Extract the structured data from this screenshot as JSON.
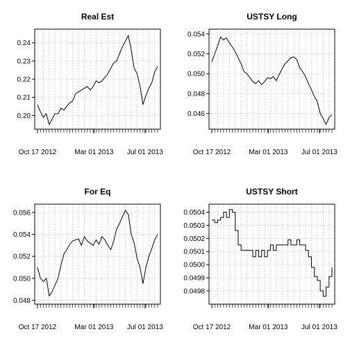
{
  "chart_data": [
    {
      "type": "line",
      "title": "Real Est",
      "x_range": [
        "2012-10-17",
        "2013-07-31"
      ],
      "ylim": [
        0.194,
        0.246
      ],
      "y_ticks": [
        0.2,
        0.21,
        0.22,
        0.23,
        0.24
      ],
      "y_tick_labels": [
        "0.20",
        "0.21",
        "0.22",
        "0.23",
        "0.24"
      ],
      "x_tick_dates": [
        "2012-10-17",
        "2013-03-01",
        "2013-07-01"
      ],
      "x_tick_labels": [
        "Oct 17 2012",
        "Mar 01 2013",
        "Jul 01 2013"
      ],
      "grid": true,
      "series": [
        {
          "x": [
            "2012-10-17",
            "2012-10-24",
            "2012-10-31",
            "2012-11-07",
            "2012-11-14",
            "2012-11-21",
            "2012-11-28",
            "2012-12-05",
            "2012-12-12",
            "2012-12-19",
            "2012-12-26",
            "2013-01-02",
            "2013-01-09",
            "2013-01-16",
            "2013-01-23",
            "2013-01-30",
            "2013-02-06",
            "2013-02-13",
            "2013-02-20",
            "2013-02-27",
            "2013-03-06",
            "2013-03-13",
            "2013-03-20",
            "2013-03-27",
            "2013-04-03",
            "2013-04-10",
            "2013-04-17",
            "2013-04-24",
            "2013-05-01",
            "2013-05-08",
            "2013-05-15",
            "2013-05-22",
            "2013-05-29",
            "2013-06-05",
            "2013-06-12",
            "2013-06-19",
            "2013-06-26",
            "2013-07-03",
            "2013-07-10",
            "2013-07-17",
            "2013-07-24",
            "2013-07-31"
          ],
          "values": [
            0.206,
            0.202,
            0.199,
            0.201,
            0.195,
            0.198,
            0.201,
            0.201,
            0.204,
            0.203,
            0.205,
            0.207,
            0.208,
            0.212,
            0.213,
            0.214,
            0.215,
            0.216,
            0.214,
            0.216,
            0.219,
            0.218,
            0.219,
            0.221,
            0.223,
            0.226,
            0.229,
            0.23,
            0.234,
            0.238,
            0.241,
            0.244,
            0.236,
            0.226,
            0.223,
            0.216,
            0.206,
            0.211,
            0.215,
            0.218,
            0.224,
            0.227
          ]
        }
      ]
    },
    {
      "type": "line",
      "title": "USTSY Long",
      "x_range": [
        "2012-10-17",
        "2013-07-31"
      ],
      "ylim": [
        0.0447,
        0.0542
      ],
      "y_ticks": [
        0.046,
        0.048,
        0.05,
        0.052,
        0.054
      ],
      "y_tick_labels": [
        "0.046",
        "0.048",
        "0.050",
        "0.052",
        "0.054"
      ],
      "x_tick_dates": [
        "2012-10-17",
        "2013-03-01",
        "2013-07-01"
      ],
      "x_tick_labels": [
        "Oct 17 2012",
        "Mar 01 2013",
        "Jul 01 2013"
      ],
      "grid": true,
      "series": [
        {
          "x": [
            "2012-10-17",
            "2012-10-24",
            "2012-10-31",
            "2012-11-07",
            "2012-11-14",
            "2012-11-21",
            "2012-11-28",
            "2012-12-05",
            "2012-12-12",
            "2012-12-19",
            "2012-12-26",
            "2013-01-02",
            "2013-01-09",
            "2013-01-16",
            "2013-01-23",
            "2013-01-30",
            "2013-02-06",
            "2013-02-13",
            "2013-02-20",
            "2013-02-27",
            "2013-03-06",
            "2013-03-13",
            "2013-03-20",
            "2013-03-27",
            "2013-04-03",
            "2013-04-10",
            "2013-04-17",
            "2013-04-24",
            "2013-05-01",
            "2013-05-08",
            "2013-05-15",
            "2013-05-22",
            "2013-05-29",
            "2013-06-05",
            "2013-06-12",
            "2013-06-19",
            "2013-06-26",
            "2013-07-03",
            "2013-07-10",
            "2013-07-17",
            "2013-07-24",
            "2013-07-31"
          ],
          "values": [
            0.0512,
            0.052,
            0.0528,
            0.0537,
            0.0534,
            0.0536,
            0.0531,
            0.0527,
            0.0522,
            0.0516,
            0.051,
            0.0502,
            0.05,
            0.0496,
            0.0492,
            0.049,
            0.0493,
            0.0489,
            0.0492,
            0.0496,
            0.0495,
            0.0497,
            0.0493,
            0.0499,
            0.0505,
            0.051,
            0.0513,
            0.0516,
            0.0517,
            0.0514,
            0.0506,
            0.0502,
            0.0497,
            0.049,
            0.0484,
            0.0477,
            0.0472,
            0.046,
            0.0455,
            0.0449,
            0.0456,
            0.0459
          ]
        }
      ]
    },
    {
      "type": "line",
      "title": "For Eq",
      "x_range": [
        "2012-10-17",
        "2013-07-31"
      ],
      "ylim": [
        0.0479,
        0.0565
      ],
      "y_ticks": [
        0.048,
        0.05,
        0.052,
        0.054,
        0.056
      ],
      "y_tick_labels": [
        "0.048",
        "0.050",
        "0.052",
        "0.054",
        "0.056"
      ],
      "x_tick_dates": [
        "2012-10-17",
        "2013-03-01",
        "2013-07-01"
      ],
      "x_tick_labels": [
        "Oct 17 2012",
        "Mar 01 2013",
        "Jul 01 2013"
      ],
      "grid": true,
      "series": [
        {
          "x": [
            "2012-10-17",
            "2012-10-24",
            "2012-10-31",
            "2012-11-07",
            "2012-11-14",
            "2012-11-21",
            "2012-11-28",
            "2012-12-05",
            "2012-12-12",
            "2012-12-19",
            "2012-12-26",
            "2013-01-02",
            "2013-01-09",
            "2013-01-16",
            "2013-01-23",
            "2013-01-30",
            "2013-02-06",
            "2013-02-13",
            "2013-02-20",
            "2013-02-27",
            "2013-03-06",
            "2013-03-13",
            "2013-03-20",
            "2013-03-27",
            "2013-04-03",
            "2013-04-10",
            "2013-04-17",
            "2013-04-24",
            "2013-05-01",
            "2013-05-08",
            "2013-05-15",
            "2013-05-22",
            "2013-05-29",
            "2013-06-05",
            "2013-06-12",
            "2013-06-19",
            "2013-06-26",
            "2013-07-03",
            "2013-07-10",
            "2013-07-17",
            "2013-07-24",
            "2013-07-31"
          ],
          "values": [
            0.051,
            0.05,
            0.0497,
            0.05,
            0.0484,
            0.0488,
            0.0494,
            0.05,
            0.0512,
            0.0522,
            0.0526,
            0.0531,
            0.0534,
            0.0535,
            0.0536,
            0.053,
            0.0538,
            0.0534,
            0.0532,
            0.053,
            0.0535,
            0.0531,
            0.0538,
            0.0535,
            0.053,
            0.0526,
            0.0534,
            0.0545,
            0.055,
            0.0556,
            0.0562,
            0.0558,
            0.054,
            0.0532,
            0.0518,
            0.051,
            0.0495,
            0.051,
            0.052,
            0.0527,
            0.0535,
            0.054
          ]
        }
      ]
    },
    {
      "type": "line",
      "title": "USTSY Short",
      "x_range": [
        "2012-10-17",
        "2013-07-31"
      ],
      "ylim": [
        0.04972,
        0.05044
      ],
      "y_ticks": [
        0.0498,
        0.0499,
        0.05,
        0.0501,
        0.0502,
        0.0503,
        0.0504
      ],
      "y_tick_labels": [
        "0.0498",
        "0.0499",
        "0.0500",
        "0.0501",
        "0.0502",
        "0.0503",
        "0.0504"
      ],
      "x_tick_dates": [
        "2012-10-17",
        "2013-03-01",
        "2013-07-01"
      ],
      "x_tick_labels": [
        "Oct 17 2012",
        "Mar 01 2013",
        "Jul 01 2013"
      ],
      "grid": true,
      "series": [
        {
          "step": true,
          "x": [
            "2012-10-17",
            "2012-10-24",
            "2012-10-31",
            "2012-11-07",
            "2012-11-14",
            "2012-11-21",
            "2012-11-28",
            "2012-12-05",
            "2012-12-12",
            "2012-12-19",
            "2012-12-26",
            "2013-01-02",
            "2013-01-09",
            "2013-01-16",
            "2013-01-23",
            "2013-01-30",
            "2013-02-06",
            "2013-02-13",
            "2013-02-20",
            "2013-02-27",
            "2013-03-06",
            "2013-03-13",
            "2013-03-20",
            "2013-03-27",
            "2013-04-03",
            "2013-04-10",
            "2013-04-17",
            "2013-04-24",
            "2013-05-01",
            "2013-05-08",
            "2013-05-15",
            "2013-05-22",
            "2013-05-29",
            "2013-06-05",
            "2013-06-12",
            "2013-06-19",
            "2013-06-26",
            "2013-07-03",
            "2013-07-10",
            "2013-07-17",
            "2013-07-24",
            "2013-07-31"
          ],
          "values": [
            0.05034,
            0.05032,
            0.05034,
            0.05036,
            0.0504,
            0.05036,
            0.05042,
            0.0504,
            0.05026,
            0.05015,
            0.05011,
            0.05011,
            0.05011,
            0.05011,
            0.05006,
            0.05011,
            0.05006,
            0.05011,
            0.05006,
            0.05011,
            0.05015,
            0.05011,
            0.05015,
            0.05015,
            0.05015,
            0.05015,
            0.05019,
            0.05015,
            0.05015,
            0.05019,
            0.05015,
            0.05015,
            0.05011,
            0.05006,
            0.04998,
            0.04991,
            0.04988,
            0.0498,
            0.04976,
            0.04983,
            0.04991,
            0.04998
          ]
        }
      ]
    }
  ]
}
